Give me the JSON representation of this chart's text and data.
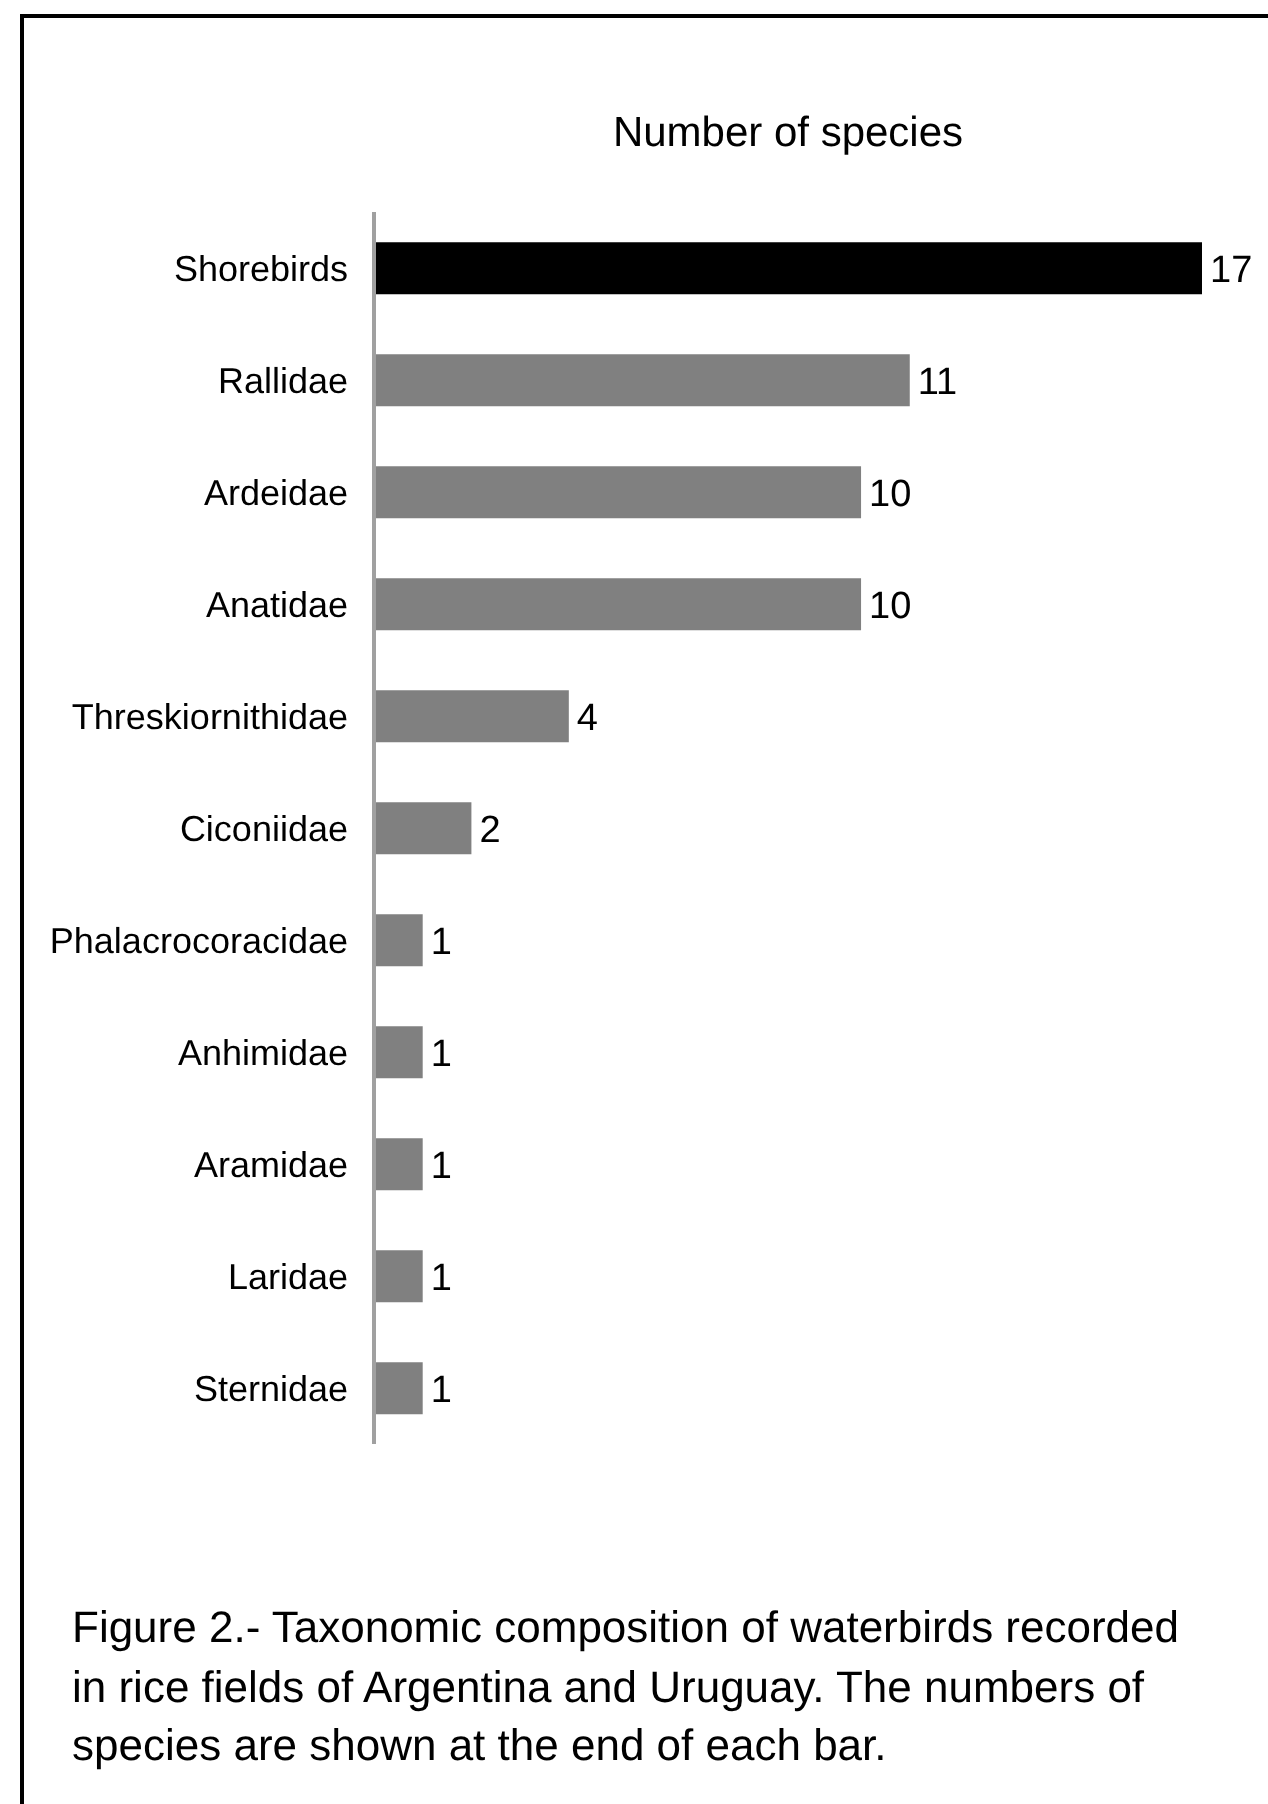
{
  "chart_data": {
    "type": "bar",
    "orientation": "horizontal",
    "title": "Number of species",
    "categories": [
      "Shorebirds",
      "Rallidae",
      "Ardeidae",
      "Anatidae",
      "Threskiornithidae",
      "Ciconiidae",
      "Phalacrocoracidae",
      "Anhimidae",
      "Aramidae",
      "Laridae",
      "Sternidae"
    ],
    "values": [
      17,
      11,
      10,
      10,
      4,
      2,
      1,
      1,
      1,
      1,
      1
    ],
    "colors": [
      "#000000",
      "#808080",
      "#808080",
      "#808080",
      "#808080",
      "#808080",
      "#808080",
      "#808080",
      "#808080",
      "#808080",
      "#808080"
    ],
    "xlim": [
      0,
      17
    ],
    "data_labels": true,
    "tick_labels": "y",
    "annotations": [
      "Figure 2.- Taxonomic composition of waterbirds recorded in rice fields of Argentina and Uruguay. The numbers of species are shown at the end of each bar."
    ]
  }
}
